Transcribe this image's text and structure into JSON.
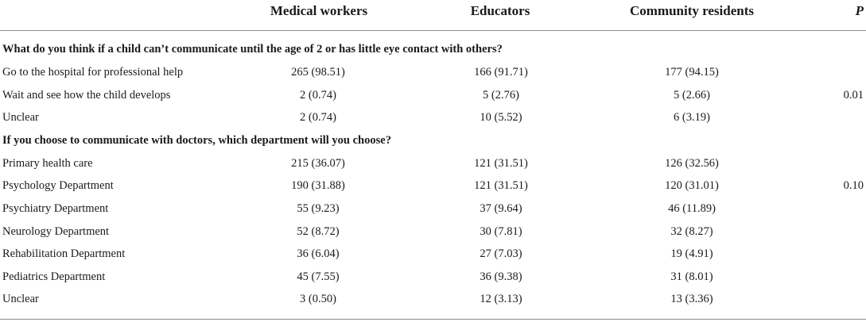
{
  "header": {
    "col0": "",
    "col1": "Medical workers",
    "col2": "Educators",
    "col3": "Community residents",
    "col4": "P"
  },
  "sections": [
    {
      "title": "What do you think if a child can’t communicate until the age of 2 or has little eye contact with others?",
      "rows": [
        {
          "label": "Go to the hospital for professional help",
          "v1": "265 (98.51)",
          "v2": "166 (91.71)",
          "v3": "177 (94.15)",
          "p": ""
        },
        {
          "label": "Wait and see how the child develops",
          "v1": "2 (0.74)",
          "v2": "5 (2.76)",
          "v3": "5 (2.66)",
          "p": "0.01"
        },
        {
          "label": "Unclear",
          "v1": "2 (0.74)",
          "v2": "10 (5.52)",
          "v3": "6 (3.19)",
          "p": ""
        }
      ]
    },
    {
      "title": "If you choose to communicate with doctors, which department will you choose?",
      "rows": [
        {
          "label": "Primary health care",
          "v1": "215 (36.07)",
          "v2": "121 (31.51)",
          "v3": "126 (32.56)",
          "p": ""
        },
        {
          "label": "Psychology Department",
          "v1": "190 (31.88)",
          "v2": "121 (31.51)",
          "v3": "120 (31.01)",
          "p": "0.10"
        },
        {
          "label": "Psychiatry Department",
          "v1": "55 (9.23)",
          "v2": "37 (9.64)",
          "v3": "46 (11.89)",
          "p": ""
        },
        {
          "label": "Neurology Department",
          "v1": "52 (8.72)",
          "v2": "30 (7.81)",
          "v3": "32 (8.27)",
          "p": ""
        },
        {
          "label": "Rehabilitation Department",
          "v1": "36 (6.04)",
          "v2": "27 (7.03)",
          "v3": "19 (4.91)",
          "p": ""
        },
        {
          "label": "Pediatrics Department",
          "v1": "45 (7.55)",
          "v2": "36 (9.38)",
          "v3": "31 (8.01)",
          "p": ""
        },
        {
          "label": "Unclear",
          "v1": "3 (0.50)",
          "v2": "12 (3.13)",
          "v3": "13 (3.36)",
          "p": ""
        }
      ]
    }
  ]
}
